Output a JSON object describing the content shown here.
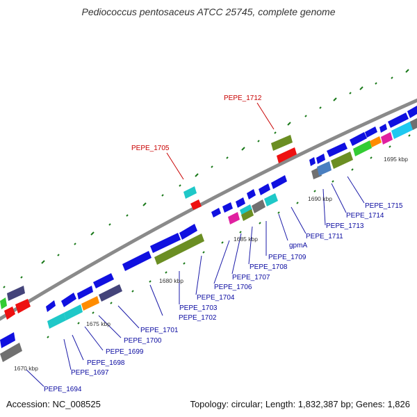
{
  "title": "Pediococcus pentosaceus ATCC 25745, complete genome",
  "footer": {
    "accession": "Accession: NC_008525",
    "topology": "Topology: circular; Length: 1,832,387 bp; Genes: 1,826"
  },
  "colors": {
    "backbone": "#8c8c8c",
    "label": "#0a0aa0",
    "highlight_label": "#c80000",
    "tick": "#1a7a1a"
  },
  "scale_labels": [
    "1670 kbp",
    "1675 kbp",
    "1680 kbp",
    "1685 kbp",
    "1690 kbp",
    "1695 kbp"
  ],
  "gene_labels": [
    "PEPE_1694",
    "PEPE_1697",
    "PEPE_1698",
    "PEPE_1699",
    "PEPE_1700",
    "PEPE_1701",
    "PEPE_1702",
    "PEPE_1703",
    "PEPE_1704",
    "PEPE_1706",
    "PEPE_1707",
    "PEPE_1708",
    "PEPE_1709",
    "gpmA",
    "PEPE_1711",
    "PEPE_1713",
    "PEPE_1714",
    "PEPE_1715"
  ],
  "highlight_labels": [
    "PEPE_1705",
    "PEPE_1712"
  ]
}
